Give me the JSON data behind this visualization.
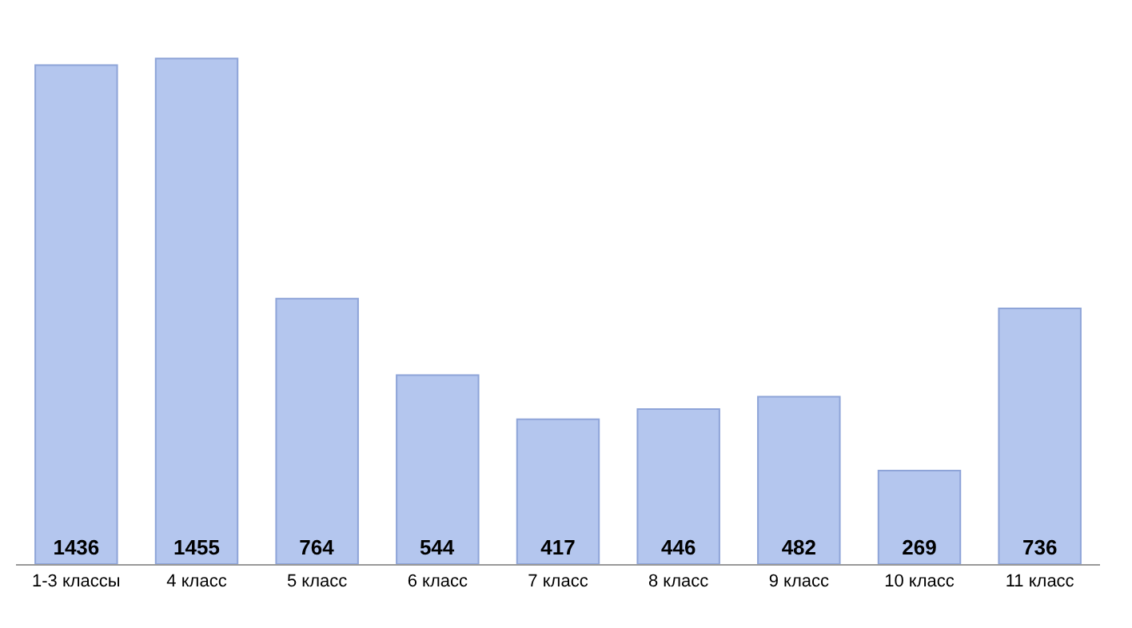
{
  "chart_data": {
    "type": "bar",
    "categories": [
      "1-3 классы",
      "4 класс",
      "5 класс",
      "6 класс",
      "7 класс",
      "8 класс",
      "9 класс",
      "10 класс",
      "11 класс"
    ],
    "values": [
      1436,
      1455,
      764,
      544,
      417,
      446,
      482,
      269,
      736
    ],
    "color": "#b4c6ee",
    "data_labels": true
  }
}
